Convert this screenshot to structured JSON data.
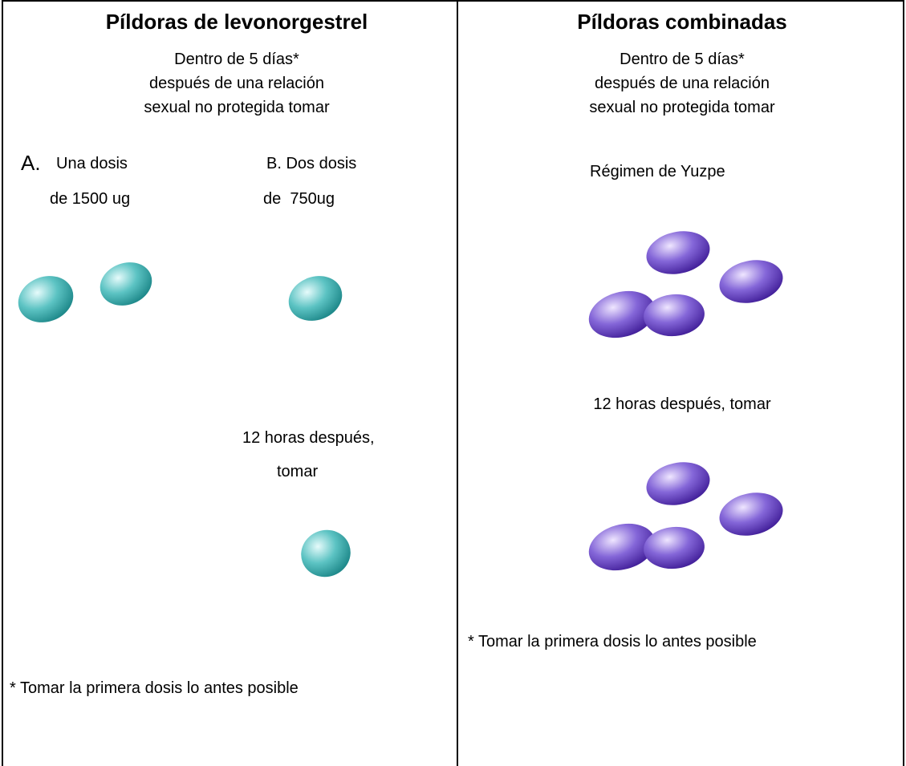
{
  "left": {
    "title": "Píldoras de levonorgestrel",
    "intro": [
      "Dentro de 5 días*",
      "después de una relación",
      "sexual no protegida tomar"
    ],
    "option_a": {
      "letter": "A.",
      "line1": "Una dosis",
      "line2": "de 1500 ug"
    },
    "option_b": {
      "line1": "B. Dos dosis",
      "line2": "de  750ug"
    },
    "later": [
      "12 horas después,",
      "tomar"
    ],
    "footnote": "* Tomar la primera dosis lo antes posible"
  },
  "right": {
    "title": "Píldoras combinadas",
    "intro": [
      "Dentro de 5 días*",
      "después de una relación",
      "sexual no protegida tomar"
    ],
    "regimen": "Régimen de Yuzpe",
    "later": "12 horas después, tomar",
    "footnote": "* Tomar la primera dosis lo antes posible"
  }
}
